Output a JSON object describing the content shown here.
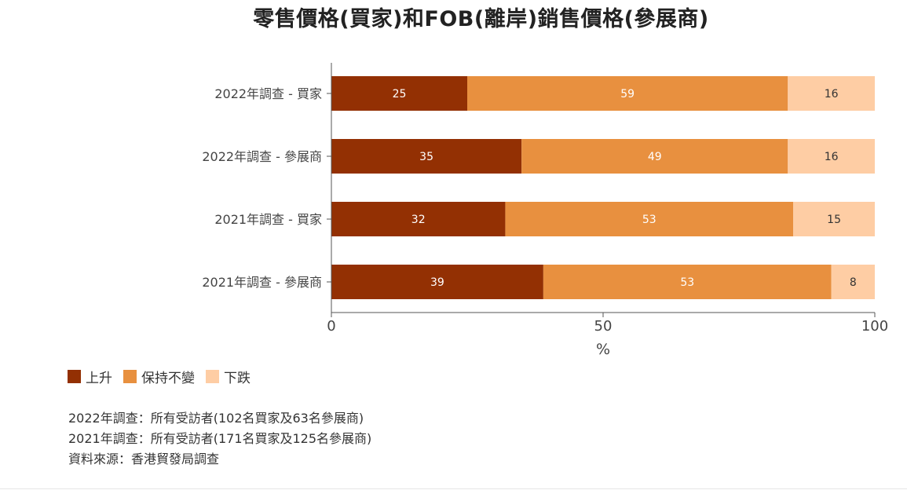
{
  "chart_data": {
    "type": "bar",
    "orientation": "horizontal",
    "stacked": true,
    "title": "零售價格(買家)和FOB(離岸)銷售價格(參展商)",
    "xlabel": "%",
    "xlim": [
      0,
      100
    ],
    "xticks": [
      "0",
      "50",
      "100"
    ],
    "categories": [
      "2022年調查 - 買家",
      "2022年調查 - 參展商",
      "2021年調查 - 買家",
      "2021年調查 - 參展商"
    ],
    "series": [
      {
        "name": "上升",
        "color": "#933003",
        "label_color": "#ffffff",
        "values": [
          25,
          35,
          32,
          39
        ]
      },
      {
        "name": "保持不變",
        "color": "#E8903F",
        "label_color": "#ffffff",
        "values": [
          59,
          49,
          53,
          53
        ]
      },
      {
        "name": "下跌",
        "color": "#FECDA4",
        "label_color": "#333333",
        "values": [
          16,
          16,
          15,
          8
        ]
      }
    ],
    "legend_position": "bottom-left",
    "grid": false
  },
  "notes": [
    "2022年調查：所有受訪者(102名買家及63名參展商)",
    "2021年調查：所有受訪者(171名買家及125名參展商)",
    "資料來源：香港貿發局調查"
  ]
}
